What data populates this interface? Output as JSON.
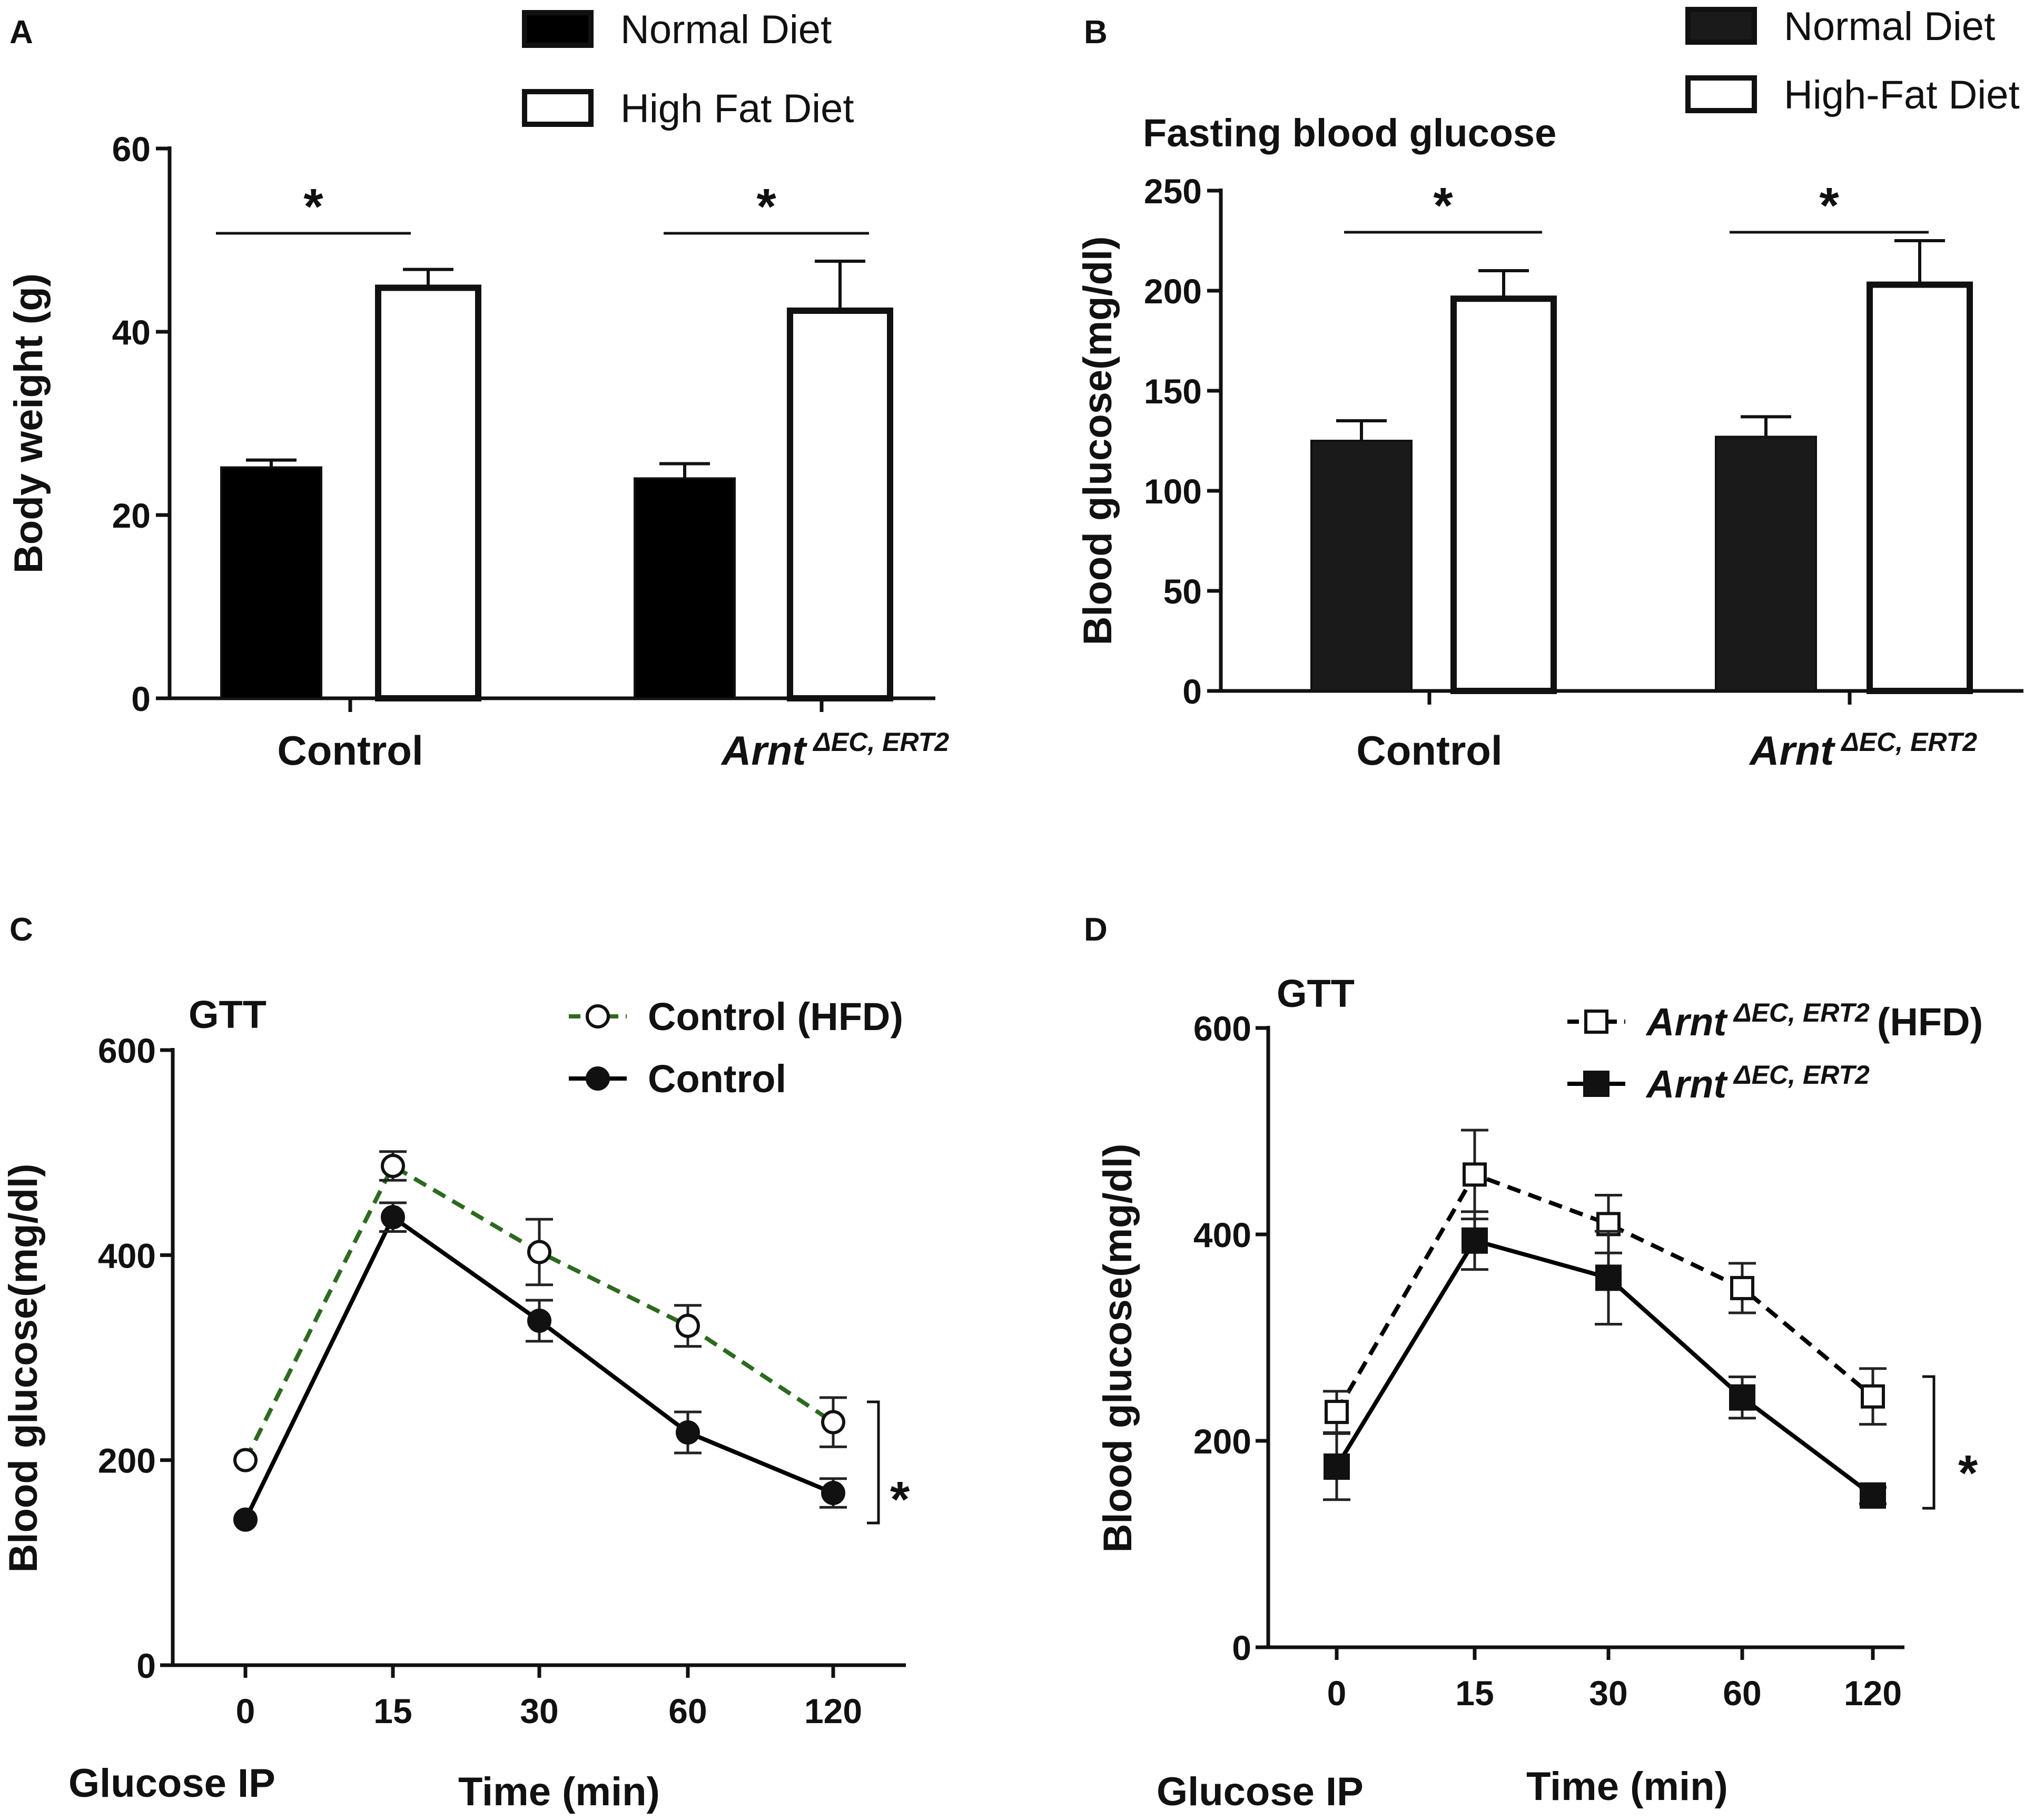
{
  "chart_data": [
    {
      "panel": "A",
      "type": "bar",
      "title": "",
      "xlabel": "",
      "ylabel": "Body weight (g)",
      "ylim": [
        0,
        60
      ],
      "yticks": [
        "0",
        "20",
        "40",
        "60"
      ],
      "categories": [
        "Control",
        "Arnt"
      ],
      "category_superscripts": [
        "",
        "ΔEC, ERT2"
      ],
      "series": [
        {
          "name": "Normal Diet",
          "fill": "#000000",
          "values": [
            25.2,
            24.0
          ],
          "errors": [
            0.8,
            1.6
          ]
        },
        {
          "name": "High Fat Diet",
          "fill": "#ffffff",
          "values": [
            44.8,
            42.3
          ],
          "errors": [
            2.0,
            5.4
          ]
        }
      ],
      "significance": [
        "*",
        "*"
      ],
      "legend_position": "top"
    },
    {
      "panel": "B",
      "type": "bar",
      "title": "Fasting blood glucose",
      "xlabel": "",
      "ylabel": "Blood glucose(mg/dl)",
      "ylim": [
        0,
        250
      ],
      "yticks": [
        "0",
        "50",
        "100",
        "150",
        "200",
        "250"
      ],
      "categories": [
        "Control",
        "Arnt"
      ],
      "category_superscripts": [
        "",
        "ΔEC, ERT2"
      ],
      "series": [
        {
          "name": "Normal Diet",
          "fill": "#1a1a1a",
          "values": [
            125,
            127
          ],
          "errors": [
            10,
            10
          ]
        },
        {
          "name": "High-Fat Diet",
          "fill": "#ffffff",
          "values": [
            196,
            203
          ],
          "errors": [
            14,
            22
          ]
        }
      ],
      "significance": [
        "*",
        "*"
      ],
      "legend_position": "top-right"
    },
    {
      "panel": "C",
      "type": "line",
      "title": "GTT",
      "xlabel": "Time  (min)",
      "x_annotation": "Glucose IP",
      "ylabel": "Blood glucose(mg/dl)",
      "ylim": [
        0,
        600
      ],
      "yticks": [
        "0",
        "200",
        "400",
        "600"
      ],
      "x": [
        "0",
        "15",
        "30",
        "60",
        "120"
      ],
      "series": [
        {
          "name": "Control (HFD)",
          "marker": "open-circle",
          "line": "dashed",
          "color": "#2d6a1f",
          "values": [
            200,
            487,
            403,
            331,
            237
          ],
          "errors": [
            0,
            14,
            32,
            20,
            24
          ]
        },
        {
          "name": "Control",
          "marker": "filled-circle",
          "line": "solid",
          "color": "#000000",
          "values": [
            142,
            437,
            336,
            227,
            168
          ],
          "errors": [
            0,
            14,
            20,
            20,
            14
          ]
        }
      ],
      "significance": "*",
      "legend_position": "top-right"
    },
    {
      "panel": "D",
      "type": "line",
      "title": "GTT",
      "xlabel": "Time  (min)",
      "x_annotation": "Glucose IP",
      "ylabel": "Blood glucose(mg/dl)",
      "ylim": [
        0,
        600
      ],
      "yticks": [
        "0",
        "200",
        "400",
        "600"
      ],
      "x": [
        "0",
        "15",
        "30",
        "60",
        "120"
      ],
      "series": [
        {
          "name": "Arnt",
          "name_superscript": "ΔEC, ERT2",
          "name_suffix": "(HFD)",
          "marker": "open-square",
          "line": "dashed",
          "color": "#000000",
          "values": [
            228,
            458,
            410,
            348,
            243
          ],
          "errors": [
            20,
            43,
            28,
            24,
            27
          ]
        },
        {
          "name": "Arnt",
          "name_superscript": "ΔEC, ERT2",
          "name_suffix": "",
          "marker": "filled-square",
          "line": "solid",
          "color": "#000000",
          "values": [
            175,
            394,
            358,
            242,
            147
          ],
          "errors": [
            32,
            28,
            45,
            20,
            8
          ]
        }
      ],
      "significance": "*",
      "legend_position": "top-right"
    }
  ]
}
